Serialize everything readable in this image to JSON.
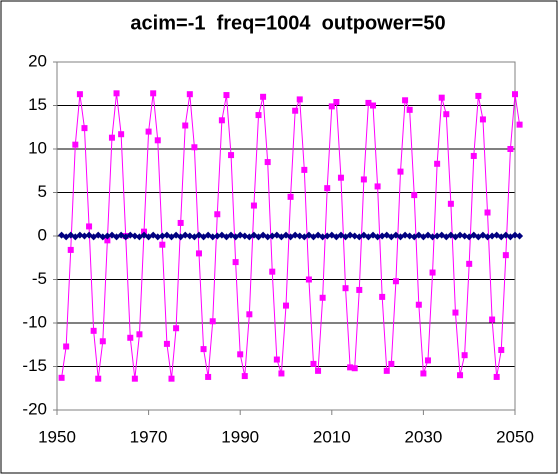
{
  "chart_data": {
    "type": "line",
    "title": "acim=-1  freq=1004  outpower=50",
    "x": [
      1951,
      1952,
      1953,
      1954,
      1955,
      1956,
      1957,
      1958,
      1959,
      1960,
      1961,
      1962,
      1963,
      1964,
      1965,
      1966,
      1967,
      1968,
      1969,
      1970,
      1971,
      1972,
      1973,
      1974,
      1975,
      1976,
      1977,
      1978,
      1979,
      1980,
      1981,
      1982,
      1983,
      1984,
      1985,
      1986,
      1987,
      1988,
      1989,
      1990,
      1991,
      1992,
      1993,
      1994,
      1995,
      1996,
      1997,
      1998,
      1999,
      2000,
      2001,
      2002,
      2003,
      2004,
      2005,
      2006,
      2007,
      2008,
      2009,
      2010,
      2011,
      2012,
      2013,
      2014,
      2015,
      2016,
      2017,
      2018,
      2019,
      2020,
      2021,
      2022,
      2023,
      2024,
      2025,
      2026,
      2027,
      2028,
      2029,
      2030,
      2031,
      2032,
      2033,
      2034,
      2035,
      2036,
      2037,
      2038,
      2039,
      2040,
      2041,
      2042,
      2043,
      2044,
      2045,
      2046,
      2047,
      2048,
      2049,
      2050,
      2051
    ],
    "series": [
      {
        "color": "#ff00ff",
        "marker": "square",
        "values": [
          -16.3,
          -12.7,
          -1.6,
          10.5,
          16.3,
          12.4,
          1.1,
          -10.9,
          -16.4,
          -12.1,
          -0.5,
          11.3,
          16.4,
          11.7,
          0.0,
          -11.7,
          -16.4,
          -11.3,
          0.5,
          12.0,
          16.4,
          11.0,
          -1.0,
          -12.4,
          -16.4,
          -10.6,
          1.5,
          12.7,
          16.3,
          10.2,
          -2.0,
          -13.0,
          -16.2,
          -9.8,
          2.5,
          13.3,
          16.2,
          9.3,
          -3.0,
          -13.6,
          -16.1,
          -9.0,
          3.5,
          13.9,
          16.0,
          8.5,
          -4.1,
          -14.2,
          -15.8,
          -8.0,
          4.5,
          14.4,
          15.7,
          7.6,
          -5.0,
          -14.7,
          -15.5,
          -7.1,
          5.5,
          14.9,
          15.4,
          6.7,
          -6.0,
          -15.1,
          -15.2,
          -6.2,
          6.5,
          15.3,
          15.0,
          5.7,
          -7.0,
          -15.5,
          -14.7,
          -5.2,
          7.4,
          15.6,
          14.5,
          4.7,
          -7.9,
          -15.8,
          -14.3,
          -4.2,
          8.3,
          15.9,
          14.0,
          3.7,
          -8.8,
          -16.0,
          -13.7,
          -3.2,
          9.2,
          16.1,
          13.4,
          2.7,
          -9.6,
          -16.2,
          -13.1,
          -2.2,
          10.0,
          16.3,
          12.8
        ]
      },
      {
        "color": "#000080",
        "marker": "diamond",
        "values": [
          0.1,
          -0.1,
          0.1,
          -0.1,
          0.1,
          0.0,
          0.1,
          -0.1,
          0.1,
          -0.1,
          0.0,
          0.1,
          -0.1,
          0.1,
          -0.1,
          0.1,
          0.0,
          -0.1,
          0.1,
          -0.1,
          0.1,
          -0.1,
          0.0,
          0.1,
          -0.1,
          0.1,
          -0.1,
          0.1,
          0.0,
          -0.1,
          0.1,
          -0.1,
          0.1,
          -0.1,
          0.0,
          0.1,
          -0.1,
          0.1,
          -0.1,
          0.1,
          0.0,
          -0.1,
          0.1,
          -0.1,
          0.1,
          -0.1,
          0.0,
          0.1,
          -0.1,
          0.1,
          -0.1,
          0.1,
          0.0,
          -0.1,
          0.1,
          -0.1,
          0.1,
          -0.1,
          0.0,
          0.1,
          -0.1,
          0.1,
          -0.1,
          0.1,
          0.0,
          -0.1,
          0.1,
          -0.1,
          0.1,
          -0.1,
          0.0,
          0.1,
          -0.1,
          0.1,
          -0.1,
          0.1,
          0.0,
          -0.1,
          0.1,
          -0.1,
          0.1,
          -0.1,
          0.0,
          0.1,
          -0.1,
          0.1,
          -0.1,
          0.1,
          0.0,
          -0.1,
          0.1,
          -0.1,
          0.1,
          -0.1,
          0.0,
          0.1,
          -0.1,
          0.1,
          -0.1,
          0.1,
          0.0
        ]
      }
    ],
    "xlim": [
      1950,
      2050
    ],
    "xticks": [
      1950,
      1970,
      1990,
      2010,
      2030,
      2050
    ],
    "ylim": [
      -20,
      20
    ],
    "yticks": [
      -20,
      -15,
      -10,
      -5,
      0,
      5,
      10,
      15,
      20
    ],
    "grid": true
  }
}
